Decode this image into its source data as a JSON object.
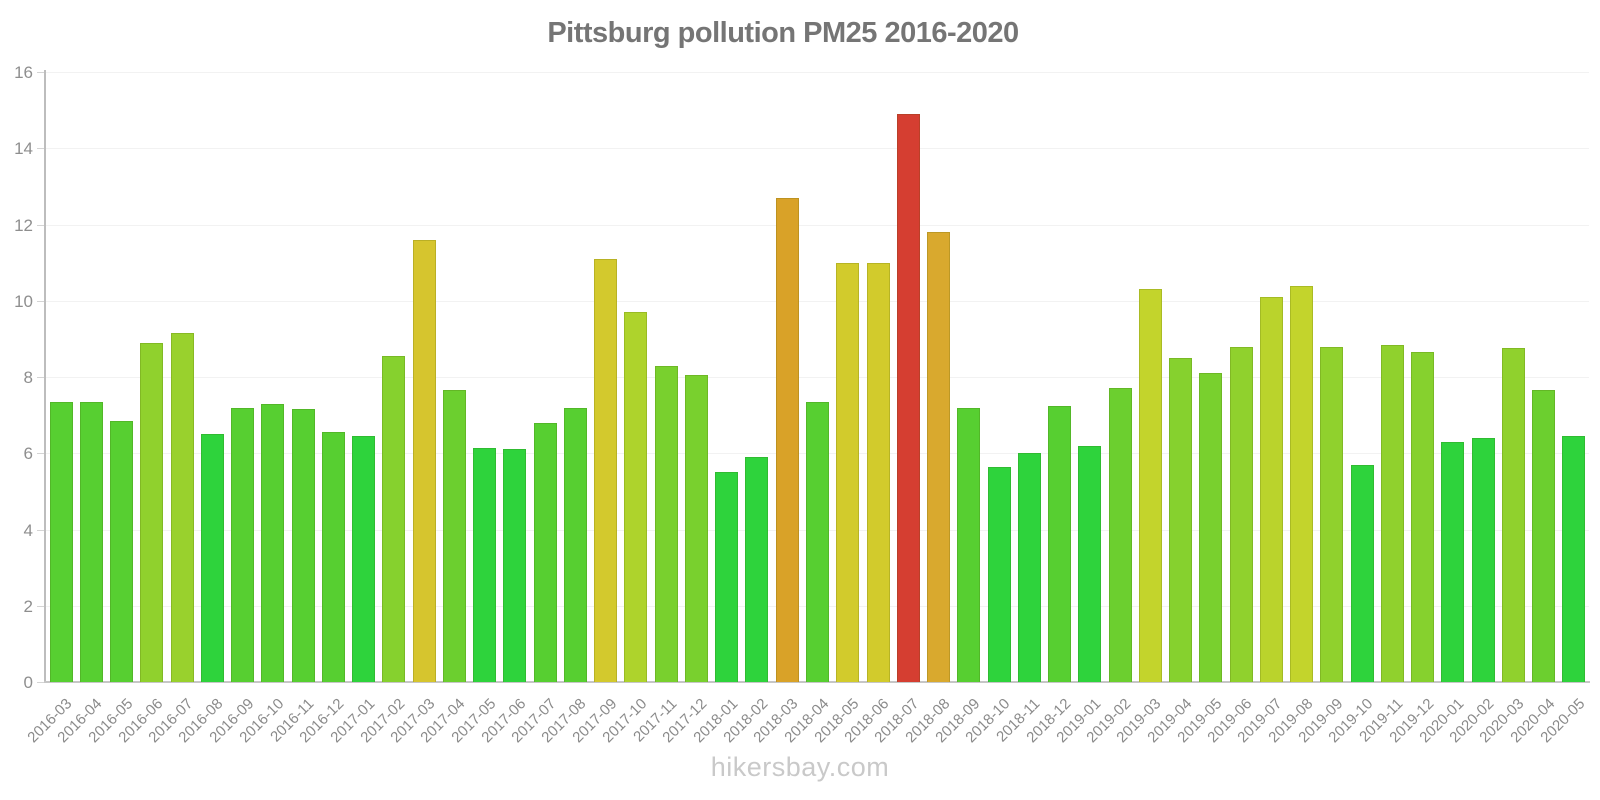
{
  "title": "Pittsburg pollution PM25 2016-2020",
  "watermark": "hikersbay.com",
  "colors": {
    "title_text": "#757575",
    "y_label_text": "#8e8e8e",
    "x_label_text": "#8a8a8a",
    "watermark_text": "#c9c9c9",
    "axis_line": "#bdbdbd",
    "gridline": "#f2f2f2",
    "green_bright": "#2ed33c",
    "green_medium": "#57cf31",
    "yellow": "#d2cb2c",
    "orange": "#d9a228",
    "red": "#d53e31"
  },
  "chart_data": {
    "type": "bar",
    "title": "Pittsburg pollution PM25 2016-2020",
    "xlabel": "",
    "ylabel": "",
    "ylim": [
      0,
      16
    ],
    "yticks": [
      0,
      2,
      4,
      6,
      8,
      10,
      12,
      14,
      16
    ],
    "ytick_labels": [
      "0",
      "2",
      "4",
      "6",
      "8",
      "10",
      "12",
      "14",
      "16"
    ],
    "grid": true,
    "legend_position": "none",
    "categories": [
      "2016-03",
      "2016-04",
      "2016-05",
      "2016-06",
      "2016-07",
      "2016-08",
      "2016-09",
      "2016-10",
      "2016-11",
      "2016-12",
      "2017-01",
      "2017-02",
      "2017-03",
      "2017-04",
      "2017-05",
      "2017-06",
      "2017-07",
      "2017-08",
      "2017-09",
      "2017-10",
      "2017-11",
      "2017-12",
      "2018-01",
      "2018-02",
      "2018-03",
      "2018-04",
      "2018-05",
      "2018-06",
      "2018-07",
      "2018-08",
      "2018-09",
      "2018-10",
      "2018-11",
      "2018-12",
      "2019-01",
      "2019-02",
      "2019-03",
      "2019-04",
      "2019-05",
      "2019-06",
      "2019-07",
      "2019-08",
      "2019-09",
      "2019-10",
      "2019-11",
      "2019-12",
      "2020-01",
      "2020-02",
      "2020-03",
      "2020-04",
      "2020-05"
    ],
    "values": [
      7.35,
      7.35,
      6.85,
      8.9,
      9.15,
      6.5,
      7.2,
      7.3,
      7.15,
      6.55,
      6.45,
      8.55,
      11.6,
      7.65,
      6.15,
      6.1,
      6.8,
      7.2,
      11.1,
      9.7,
      8.3,
      8.05,
      5.5,
      5.9,
      12.7,
      7.35,
      11.0,
      11.0,
      14.9,
      11.8,
      7.2,
      5.65,
      6.0,
      7.25,
      6.2,
      7.7,
      10.3,
      8.5,
      8.1,
      8.8,
      10.1,
      10.4,
      8.8,
      5.7,
      8.85,
      8.65,
      6.3,
      6.4,
      8.75,
      7.65,
      6.45
    ],
    "bar_colors": [
      "#57cf31",
      "#57cf31",
      "#57cf31",
      "#90d12d",
      "#99d12d",
      "#2ed33c",
      "#57cf31",
      "#57cf31",
      "#57cf31",
      "#57cf31",
      "#2ed33c",
      "#86d12e",
      "#d6c52e",
      "#6ccf2f",
      "#2ed33c",
      "#2ed33c",
      "#57cf31",
      "#57cf31",
      "#d3c92d",
      "#aed32c",
      "#79d02e",
      "#79d02e",
      "#2ed33c",
      "#2ed33c",
      "#d9a228",
      "#57cf31",
      "#d2cb2c",
      "#d2cb2c",
      "#d53e31",
      "#d9a92e",
      "#57cf31",
      "#2ed33c",
      "#2ed33c",
      "#57cf31",
      "#2ed33c",
      "#6ccf2f",
      "#c3d42c",
      "#86d12e",
      "#79d02e",
      "#90d12d",
      "#bad32c",
      "#c3d42c",
      "#90d12d",
      "#2ed33c",
      "#90d12d",
      "#86d12e",
      "#2ed33c",
      "#2ed33c",
      "#90d12d",
      "#6ccf2f",
      "#2ed33c"
    ]
  }
}
